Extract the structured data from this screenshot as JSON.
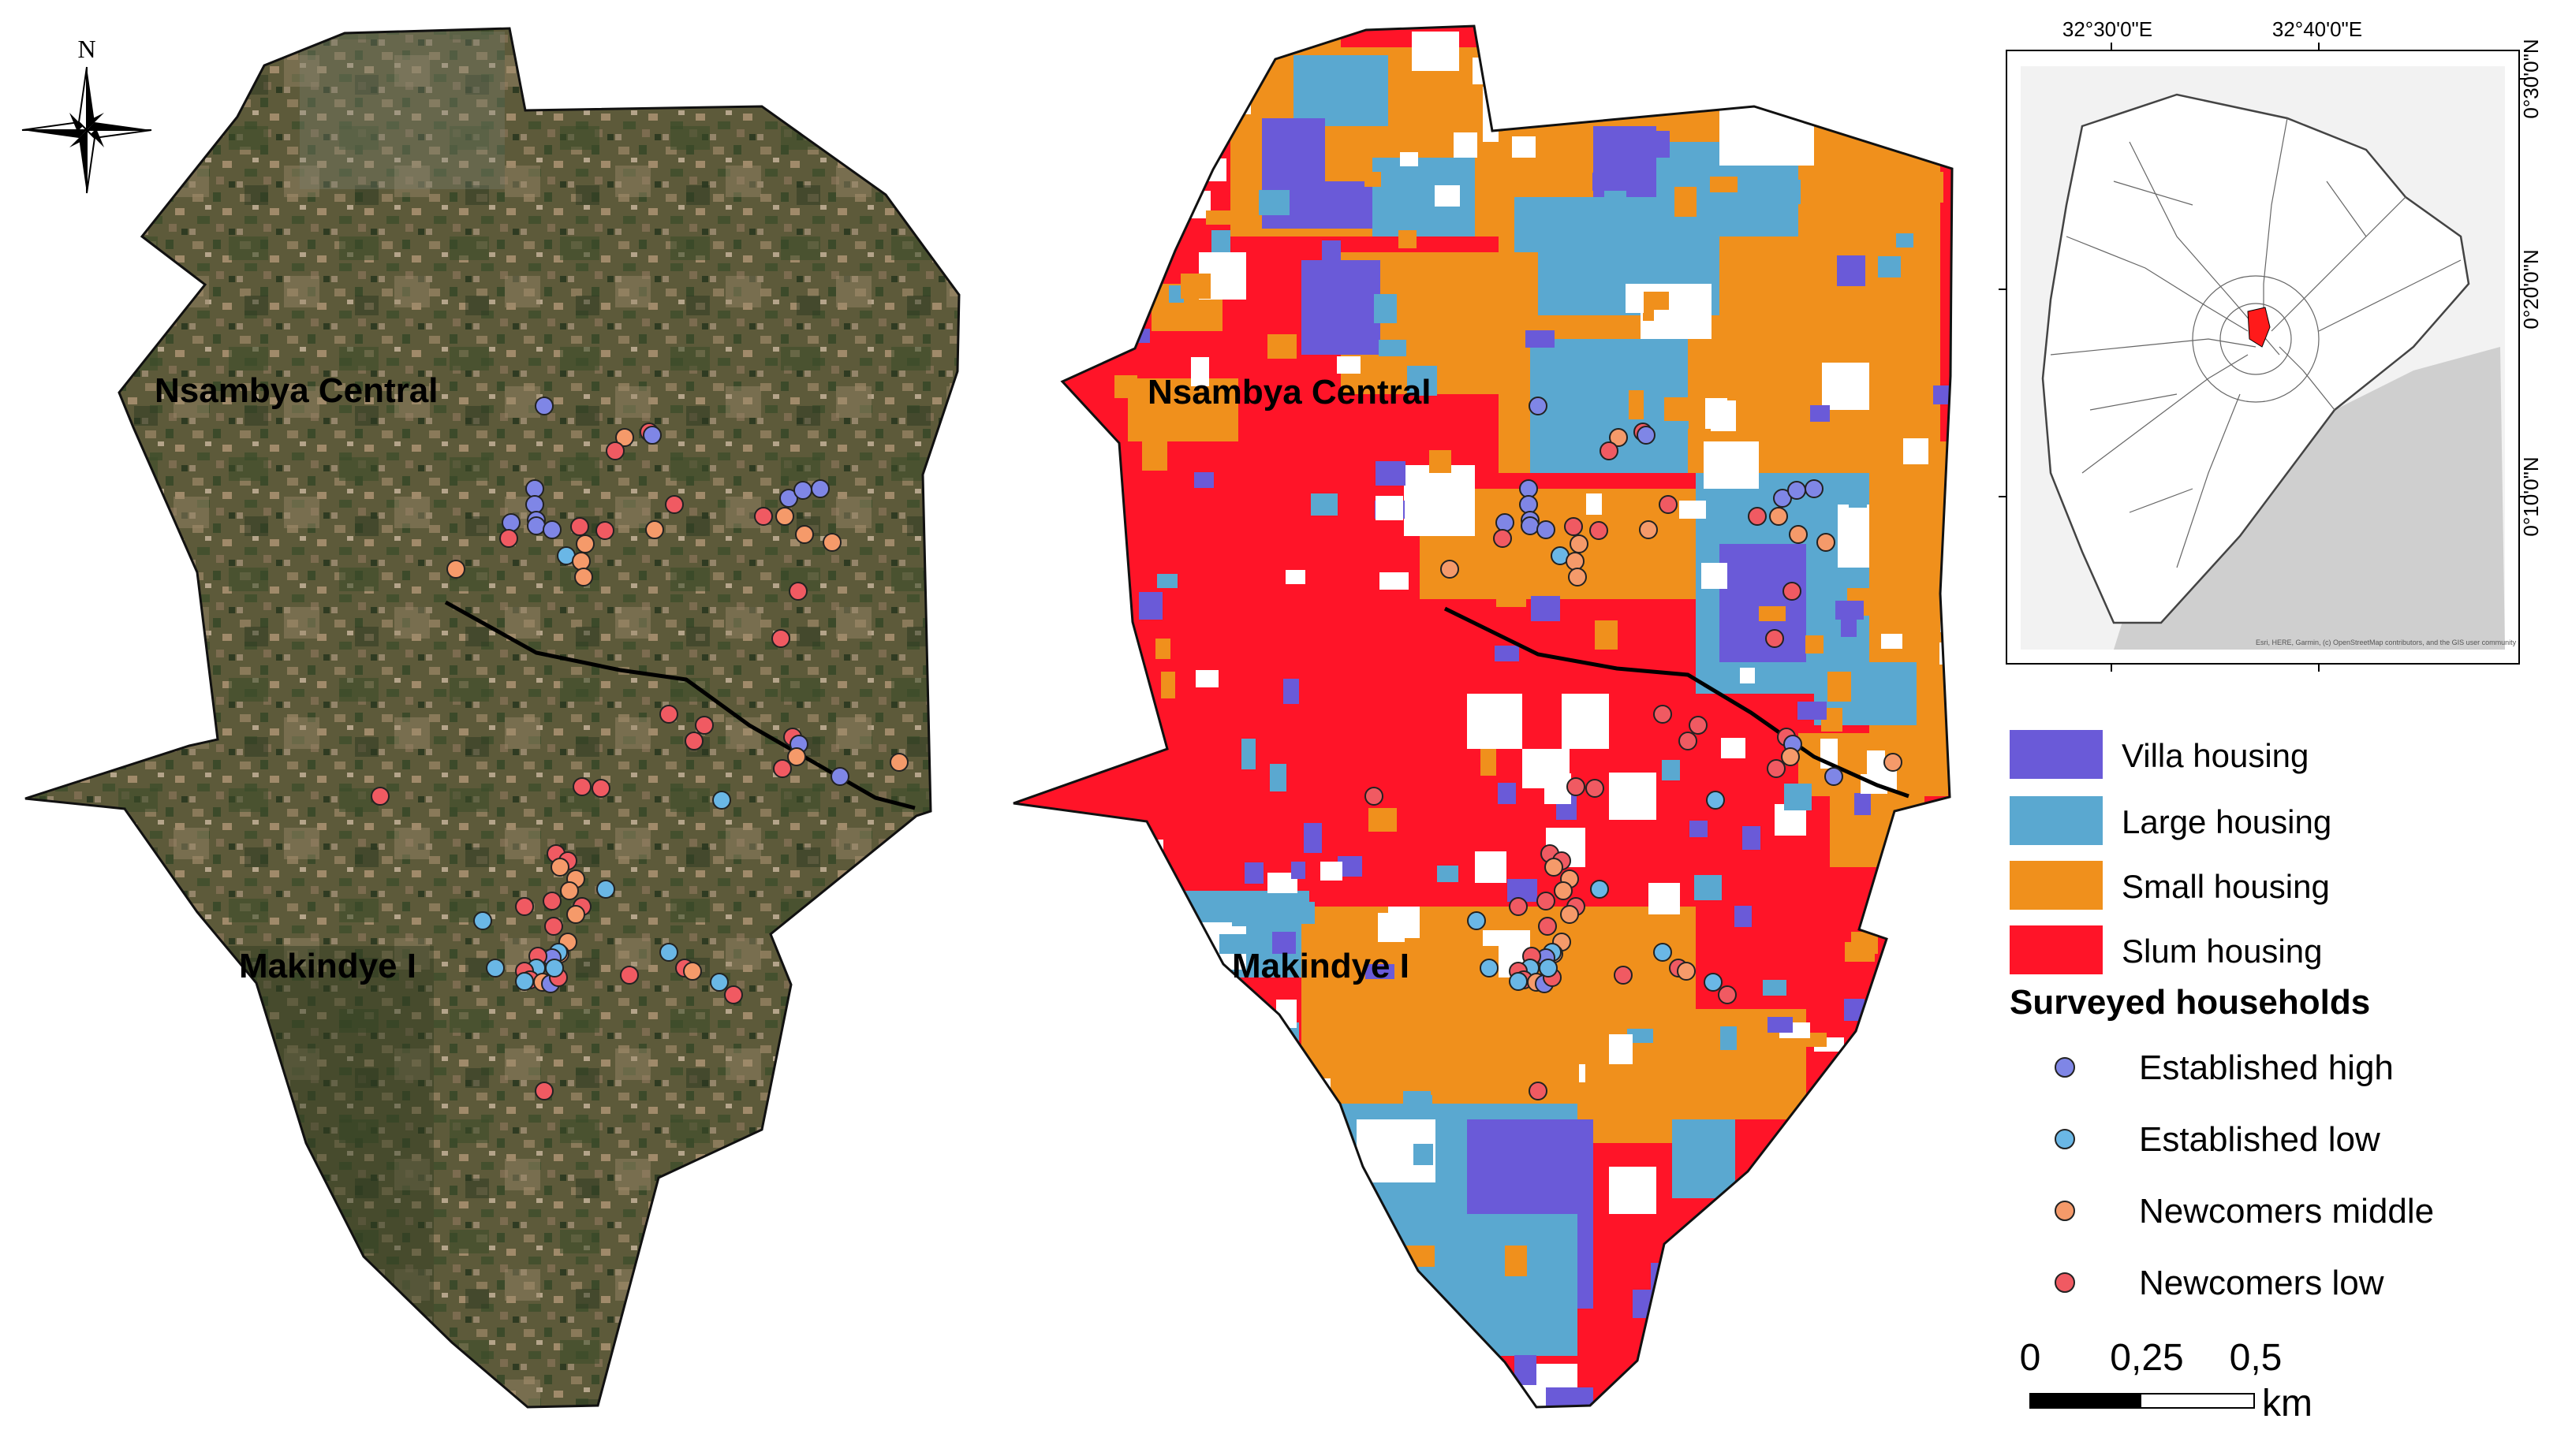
{
  "left_map": {
    "area_labels": [
      "Nsambya Central",
      "Makindye I"
    ]
  },
  "right_map": {
    "area_labels": [
      "Nsambya Central",
      "Makindye I"
    ]
  },
  "north_arrow": {
    "label": "N"
  },
  "inset_map": {
    "lon_labels": [
      "32°30'0\"E",
      "32°40'0\"E"
    ],
    "lat_labels": [
      "0°30'0\"N",
      "0°20'0\"N",
      "0°10'0\"N"
    ],
    "attribution": "Esri, HERE, Garmin, (c) OpenStreetMap contributors, and the GIS user community",
    "highlight_color": "#ff1a1a"
  },
  "legend": {
    "housing": [
      {
        "label": "Villa housing",
        "color": "#6a5ad8"
      },
      {
        "label": "Large housing",
        "color": "#5aa8d0"
      },
      {
        "label": "Small housing",
        "color": "#f0901c"
      },
      {
        "label": "Slum housing",
        "color": "#ff1428"
      }
    ],
    "households_title": "Surveyed households",
    "households": [
      {
        "label": "Established high",
        "color": "#7f86e6"
      },
      {
        "label": "Established low",
        "color": "#6ab7e6"
      },
      {
        "label": "Newcomers middle",
        "color": "#f59a6a"
      },
      {
        "label": "Newcomers low",
        "color": "#f05a62"
      }
    ]
  },
  "scale_bar": {
    "ticks": [
      "0",
      "0,25",
      "0,5"
    ],
    "unit": "km"
  }
}
